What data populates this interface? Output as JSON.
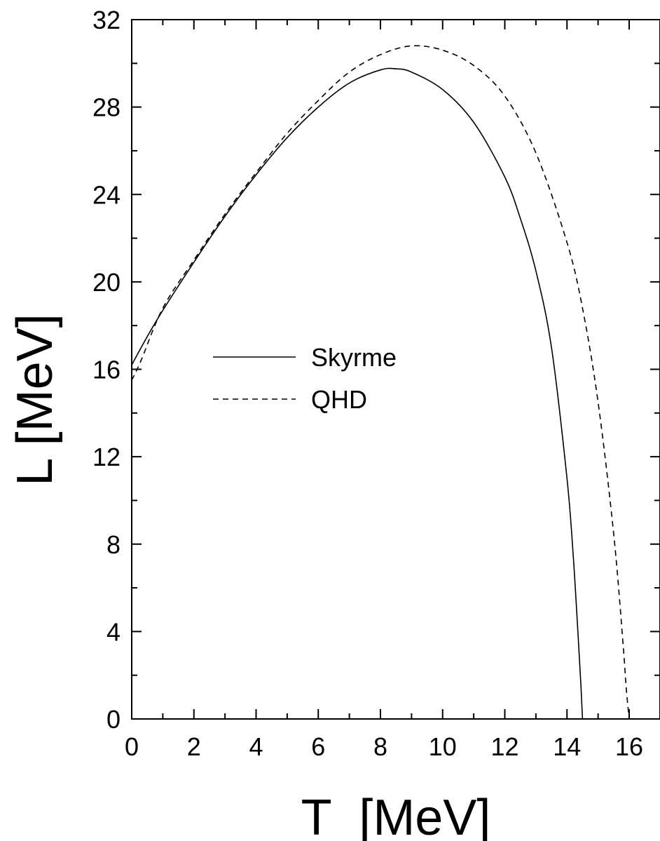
{
  "chart_data": {
    "type": "line",
    "title": "",
    "xlabel": "T  [MeV]",
    "ylabel": "L [MeV]",
    "xlim": [
      0,
      17
    ],
    "ylim": [
      0,
      32
    ],
    "xticks": [
      "0",
      "2",
      "4",
      "6",
      "8",
      "10",
      "12",
      "14",
      "16"
    ],
    "yticks": [
      "0",
      "4",
      "8",
      "12",
      "16",
      "20",
      "24",
      "28",
      "32"
    ],
    "grid": false,
    "legend_position": "center-left",
    "series": [
      {
        "name": "Skyrme",
        "style": "solid",
        "color": "#000000",
        "x": [
          0,
          0.5,
          1,
          2,
          3,
          4,
          5,
          6,
          7,
          8,
          8.5,
          9,
          10,
          11,
          12,
          12.5,
          13,
          13.5,
          14,
          14.2,
          14.35,
          14.45,
          14.5
        ],
        "y": [
          16.2,
          17.5,
          18.7,
          20.9,
          23.0,
          24.9,
          26.6,
          28.0,
          29.1,
          29.7,
          29.75,
          29.6,
          28.8,
          27.3,
          24.8,
          22.9,
          20.5,
          17.0,
          11.0,
          7.5,
          4.0,
          1.5,
          0
        ]
      },
      {
        "name": "QHD",
        "style": "dashed",
        "color": "#000000",
        "x": [
          0,
          0.3,
          1,
          2,
          3,
          4,
          5,
          6,
          7,
          8,
          9,
          10,
          11,
          12,
          13,
          14,
          14.5,
          15,
          15.5,
          15.8,
          15.9,
          16.0
        ],
        "y": [
          15.5,
          16.4,
          18.8,
          21.0,
          23.1,
          25.0,
          26.8,
          28.3,
          29.6,
          30.4,
          30.8,
          30.6,
          29.9,
          28.5,
          25.9,
          21.8,
          18.8,
          14.5,
          8.5,
          3.5,
          1.5,
          0
        ]
      }
    ]
  }
}
